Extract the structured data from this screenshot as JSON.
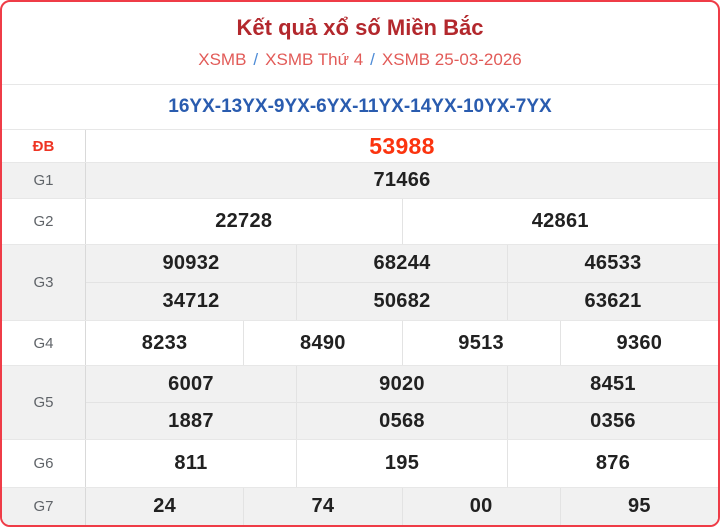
{
  "header": {
    "title": "Kết quả xổ số Miền Bắc",
    "breadcrumb": [
      "XSMB",
      "XSMB Thứ 4",
      "XSMB 25-03-2026"
    ],
    "separator": "/"
  },
  "summary_line": "16YX-13YX-9YX-6YX-11YX-14YX-10YX-7YX",
  "prize_table": {
    "rows": [
      {
        "label": "ĐB",
        "special": true,
        "groups": [
          [
            "53988"
          ]
        ]
      },
      {
        "label": "G1",
        "special": false,
        "groups": [
          [
            "71466"
          ]
        ]
      },
      {
        "label": "G2",
        "special": false,
        "groups": [
          [
            "22728",
            "42861"
          ]
        ]
      },
      {
        "label": "G3",
        "special": false,
        "groups": [
          [
            "90932",
            "68244",
            "46533"
          ],
          [
            "34712",
            "50682",
            "63621"
          ]
        ]
      },
      {
        "label": "G4",
        "special": false,
        "groups": [
          [
            "8233",
            "8490",
            "9513",
            "9360"
          ]
        ]
      },
      {
        "label": "G5",
        "special": false,
        "groups": [
          [
            "6007",
            "9020",
            "8451"
          ],
          [
            "1887",
            "0568",
            "0356"
          ]
        ]
      },
      {
        "label": "G6",
        "special": false,
        "groups": [
          [
            "811",
            "195",
            "876"
          ]
        ]
      },
      {
        "label": "G7",
        "special": false,
        "groups": [
          [
            "24",
            "74",
            "00",
            "95"
          ]
        ]
      }
    ]
  },
  "colors": {
    "border_red": "#ef3c47",
    "title_red": "#b3282d",
    "breadcrumb_red": "#e25b58",
    "separator_blue": "#4d8bd6",
    "summary_blue": "#2a5caf",
    "special_red": "#fb340f",
    "number_dark": "#212121",
    "label_grey": "#5f6368",
    "row_alt_bg": "#f1f1f1",
    "grid_line": "#e3e3e3"
  }
}
